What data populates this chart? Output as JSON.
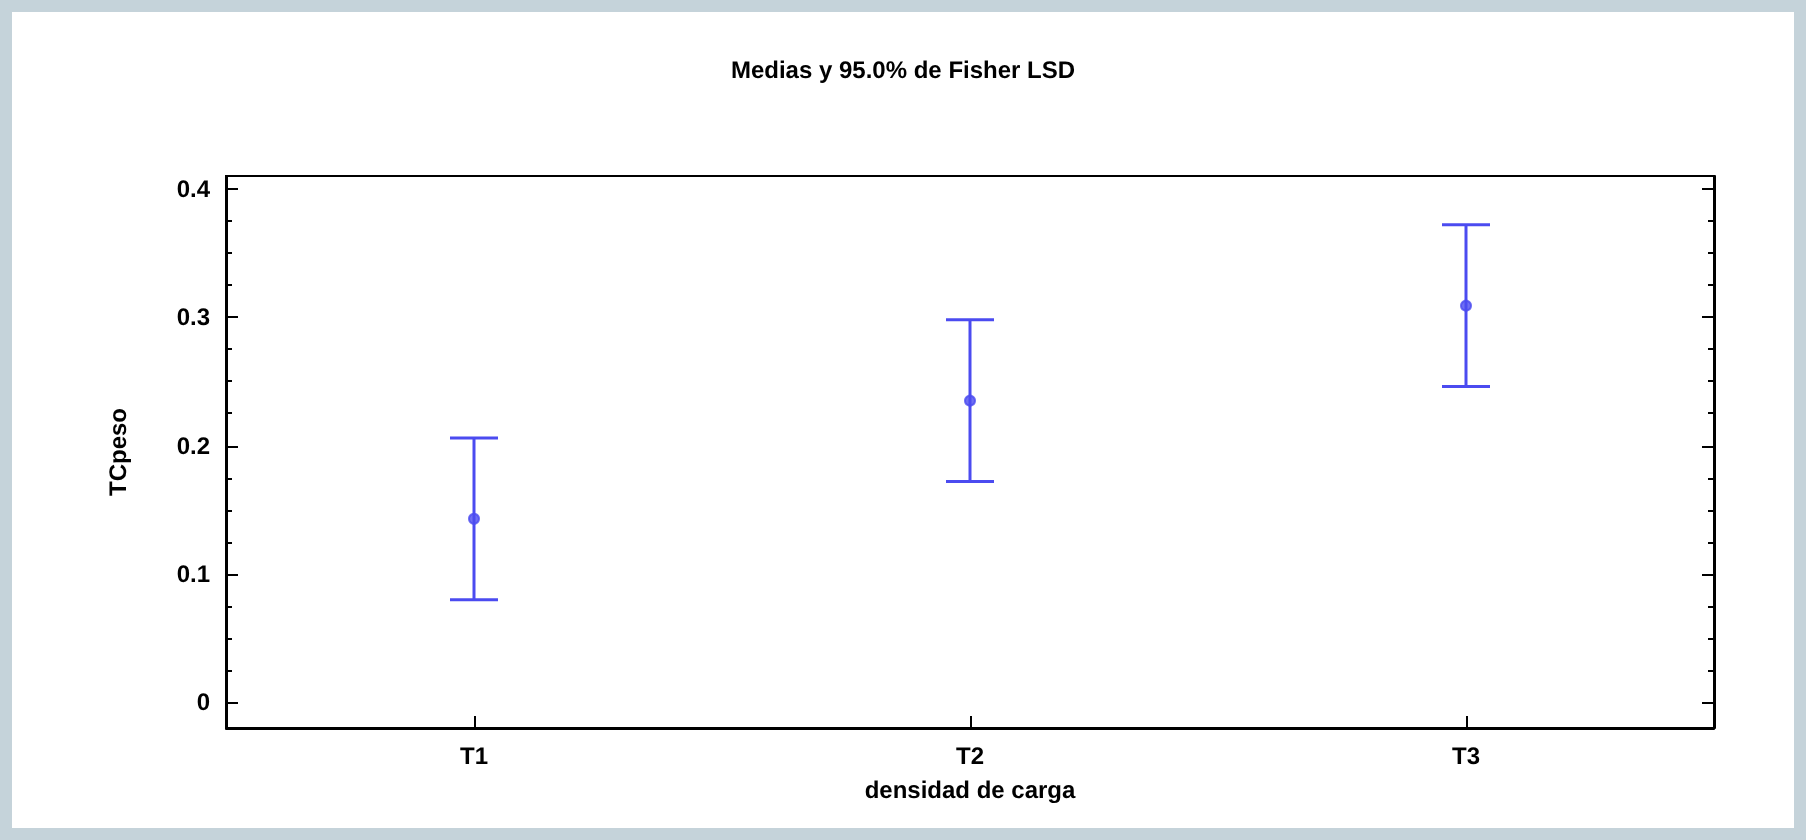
{
  "chart_data": {
    "type": "scatter",
    "title": "Medias y 95.0% de Fisher LSD",
    "xlabel": "densidad de carga",
    "ylabel": "TCpeso",
    "categories": [
      "T1",
      "T2",
      "T3"
    ],
    "values": [
      0.143,
      0.235,
      0.309
    ],
    "errors": [
      0.063,
      0.063,
      0.063
    ],
    "color": "#4b4bf0",
    "marker": "circle",
    "ylim": [
      -0.02,
      0.41
    ],
    "yticks": [
      0,
      0.1,
      0.2,
      0.3,
      0.4
    ],
    "grid": false
  }
}
